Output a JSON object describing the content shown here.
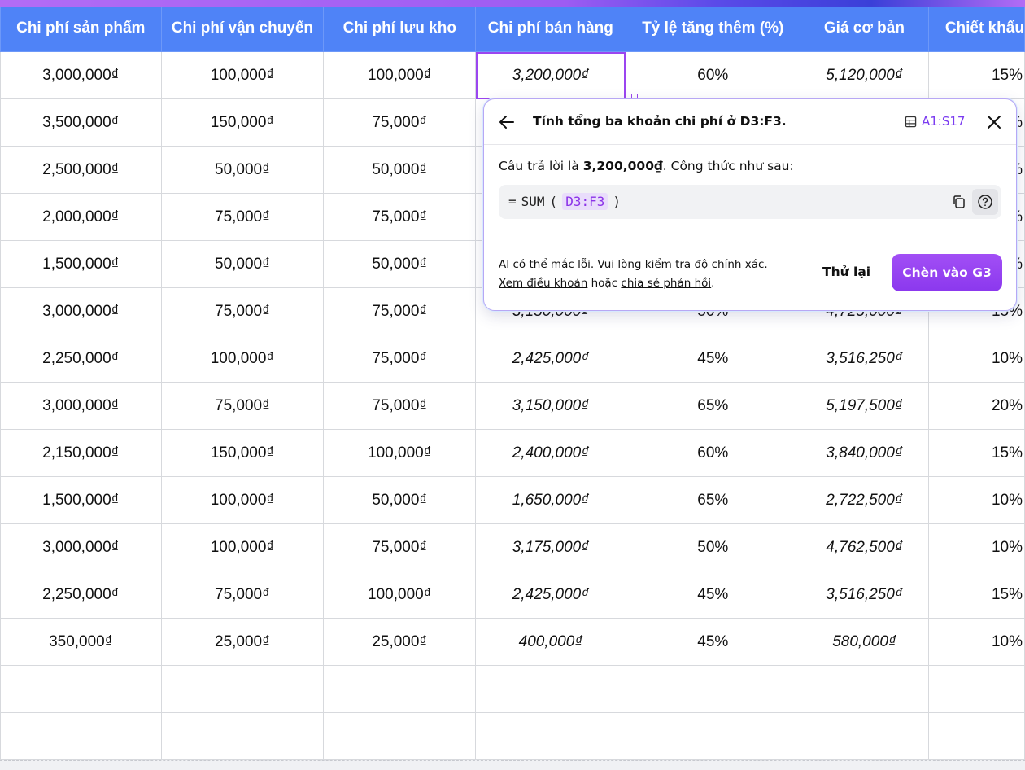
{
  "table": {
    "headers": [
      "Chi phí sản phẩm",
      "Chi phí vận chuyển",
      "Chi phí lưu kho",
      "Chi phí bán hàng",
      "Tỷ lệ tăng thêm (%)",
      "Giá cơ bản",
      "Chiết khấu"
    ],
    "rows": [
      [
        "3,000,000₫",
        "100,000₫",
        "100,000₫",
        "3,200,000₫",
        "60%",
        "5,120,000₫",
        "15%"
      ],
      [
        "3,500,000₫",
        "150,000₫",
        "75,000₫",
        "",
        "",
        "",
        "%"
      ],
      [
        "2,500,000₫",
        "50,000₫",
        "50,000₫",
        "",
        "",
        "",
        "%"
      ],
      [
        "2,000,000₫",
        "75,000₫",
        "75,000₫",
        "",
        "",
        "",
        "%"
      ],
      [
        "1,500,000₫",
        "50,000₫",
        "50,000₫",
        "",
        "",
        "",
        "%"
      ],
      [
        "3,000,000₫",
        "75,000₫",
        "75,000₫",
        "3,150,000₫",
        "50%",
        "4,725,000₫",
        "15%"
      ],
      [
        "2,250,000₫",
        "100,000₫",
        "75,000₫",
        "2,425,000₫",
        "45%",
        "3,516,250₫",
        "10%"
      ],
      [
        "3,000,000₫",
        "75,000₫",
        "75,000₫",
        "3,150,000₫",
        "65%",
        "5,197,500₫",
        "20%"
      ],
      [
        "2,150,000₫",
        "150,000₫",
        "100,000₫",
        "2,400,000₫",
        "60%",
        "3,840,000₫",
        "15%"
      ],
      [
        "1,500,000₫",
        "100,000₫",
        "50,000₫",
        "1,650,000₫",
        "65%",
        "2,722,500₫",
        "10%"
      ],
      [
        "3,000,000₫",
        "100,000₫",
        "75,000₫",
        "3,175,000₫",
        "50%",
        "4,762,500₫",
        "10%"
      ],
      [
        "2,250,000₫",
        "75,000₫",
        "100,000₫",
        "2,425,000₫",
        "45%",
        "3,516,250₫",
        "15%"
      ],
      [
        "350,000₫",
        "25,000₫",
        "25,000₫",
        "400,000₫",
        "45%",
        "580,000₫",
        "10%"
      ],
      [
        "",
        "",
        "",
        "",
        "",
        "",
        ""
      ],
      [
        "",
        "",
        "",
        "",
        "",
        "",
        ""
      ]
    ]
  },
  "popup": {
    "title": "Tính tổng ba khoản chi phí ở D3:F3.",
    "range": "A1:S17",
    "answer_prefix": "Câu trả lời là ",
    "answer_value": "3,200,000₫",
    "answer_suffix": ". Công thức như sau:",
    "formula": {
      "eq": "=",
      "func": "SUM",
      "open": "(",
      "ref": "D3:F3",
      "close": ")"
    },
    "disclaimer_line1": "AI có thể mắc lỗi. Vui lòng kiểm tra độ chính xác.",
    "terms_link": "Xem điều khoản",
    "or_text": " hoặc ",
    "feedback_link": "chia sẻ phản hồi",
    "period": ".",
    "retry_label": "Thử lại",
    "insert_label": "Chèn vào G3"
  },
  "colors": {
    "header_bg": "#4f83f7",
    "accent": "#8b38ee"
  }
}
